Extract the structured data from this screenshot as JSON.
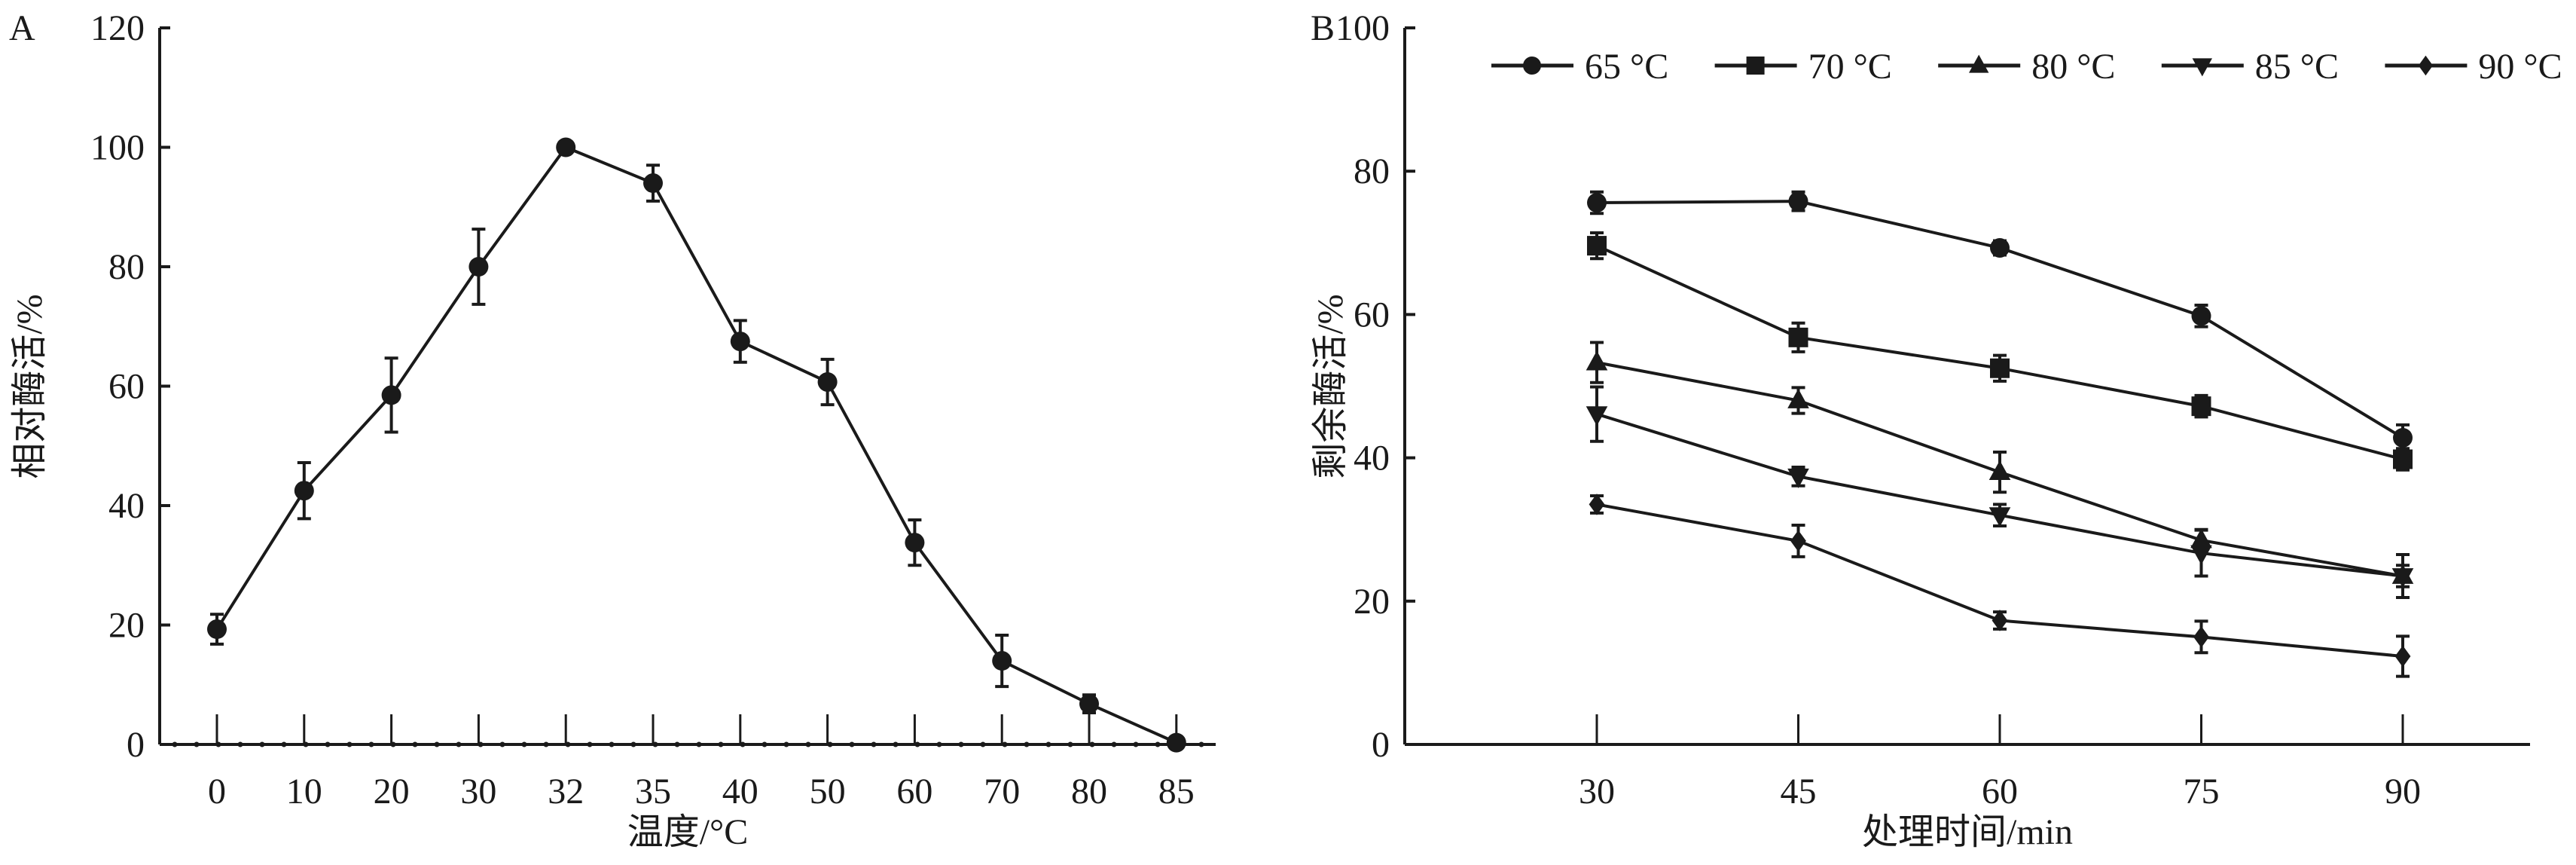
{
  "chart_data": [
    {
      "type": "line",
      "panel_label": "A",
      "title": "",
      "xlabel": "温度/°C",
      "ylabel": "相对酶活/%",
      "categories": [
        "0",
        "10",
        "20",
        "30",
        "32",
        "35",
        "40",
        "50",
        "60",
        "70",
        "80",
        "85"
      ],
      "ylim": [
        0,
        120
      ],
      "yticks": [
        "0",
        "20",
        "40",
        "60",
        "80",
        "100",
        "120"
      ],
      "grid": false,
      "series": [
        {
          "name": "relative activity",
          "marker": "circle",
          "values": [
            19.3,
            42.5,
            58.5,
            80.0,
            100.0,
            94.0,
            67.5,
            60.7,
            33.8,
            14.0,
            6.8,
            0.3
          ],
          "errors": [
            2.5,
            4.7,
            6.2,
            6.3,
            0,
            3.0,
            3.5,
            3.8,
            3.8,
            4.3,
            1.5,
            0
          ]
        }
      ]
    },
    {
      "type": "line",
      "panel_label": "B",
      "title": "",
      "xlabel": "处理时间/min",
      "ylabel": "剩余酶活/%",
      "categories": [
        "30",
        "45",
        "60",
        "75",
        "90"
      ],
      "ylim": [
        0,
        100
      ],
      "yticks": [
        "0",
        "20",
        "40",
        "60",
        "80",
        "100"
      ],
      "grid": false,
      "legend_position": "top",
      "series": [
        {
          "name": "65 °C",
          "marker": "circle",
          "values": [
            75.6,
            75.8,
            69.3,
            59.8,
            42.8
          ],
          "errors": [
            1.5,
            1.3,
            1.0,
            1.5,
            1.8
          ]
        },
        {
          "name": "70 °C",
          "marker": "square",
          "values": [
            69.6,
            56.8,
            52.5,
            47.2,
            39.8
          ],
          "errors": [
            1.8,
            2.0,
            1.8,
            1.5,
            1.5
          ]
        },
        {
          "name": "80 °C",
          "marker": "triangle-up",
          "values": [
            53.3,
            48.0,
            38.0,
            28.5,
            23.5
          ],
          "errors": [
            2.8,
            1.8,
            2.8,
            1.5,
            3.0
          ]
        },
        {
          "name": "85 °C",
          "marker": "triangle-down",
          "values": [
            46.1,
            37.4,
            32.0,
            26.7,
            23.5
          ],
          "errors": [
            3.8,
            1.3,
            1.5,
            3.2,
            1.5
          ]
        },
        {
          "name": "90 °C",
          "marker": "diamond",
          "values": [
            33.5,
            28.4,
            17.3,
            15.0,
            12.3
          ],
          "errors": [
            1.2,
            2.2,
            1.2,
            2.2,
            2.8
          ]
        }
      ]
    }
  ]
}
